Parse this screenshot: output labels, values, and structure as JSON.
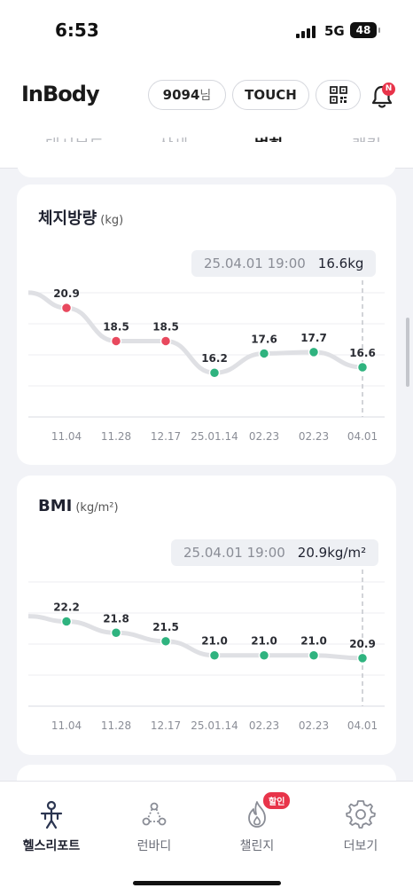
{
  "status_bar": {
    "time": "6:53",
    "network": "5G",
    "battery": "48"
  },
  "header": {
    "logo": "InBody",
    "user_id": "9094",
    "user_suffix": "님",
    "touch_label": "TOUCH",
    "icons": {
      "qr": "qr-code-icon",
      "notification": "bell-icon"
    },
    "notification_badge": "N"
  },
  "tabs": [
    {
      "label": "대시보드",
      "active": false
    },
    {
      "label": "상세",
      "active": false
    },
    {
      "label": "변화",
      "active": true
    },
    {
      "label": "랭킹",
      "active": false
    }
  ],
  "cards": [
    {
      "title": "체지방량",
      "unit": "(kg)",
      "tooltip": {
        "date": "25.04.01 19:00",
        "value": "16.6kg"
      },
      "chart_data": {
        "type": "line",
        "categories": [
          "11.04",
          "11.28",
          "12.17",
          "25.01.14",
          "02.23",
          "02.23",
          "04.01"
        ],
        "values": [
          20.9,
          18.5,
          18.5,
          16.2,
          17.6,
          17.7,
          16.6
        ],
        "point_colors": [
          "#e8495e",
          "#e8495e",
          "#e8495e",
          "#2fb37f",
          "#2fb37f",
          "#2fb37f",
          "#2fb37f"
        ],
        "selected_index": 6,
        "ylim": [
          13.0,
          22.0
        ],
        "grid": true
      }
    },
    {
      "title": "BMI",
      "unit": "(kg/m²)",
      "tooltip": {
        "date": "25.04.01 19:00",
        "value": "20.9kg/m²"
      },
      "chart_data": {
        "type": "line",
        "categories": [
          "11.04",
          "11.28",
          "12.17",
          "25.01.14",
          "02.23",
          "02.23",
          "04.01"
        ],
        "values": [
          22.2,
          21.8,
          21.5,
          21.0,
          21.0,
          21.0,
          20.9
        ],
        "point_colors": [
          "#2fb37f",
          "#2fb37f",
          "#2fb37f",
          "#2fb37f",
          "#2fb37f",
          "#2fb37f",
          "#2fb37f"
        ],
        "selected_index": 6,
        "ylim": [
          19.2,
          23.6
        ],
        "grid": true
      }
    }
  ],
  "bottom_nav": [
    {
      "label": "헬스리포트",
      "icon": "health-report-icon",
      "active": true
    },
    {
      "label": "런바디",
      "icon": "runbody-icon",
      "active": false
    },
    {
      "label": "챌린지",
      "icon": "challenge-icon",
      "active": false,
      "badge": "할인"
    },
    {
      "label": "더보기",
      "icon": "gear-icon",
      "active": false
    }
  ],
  "colors": {
    "accent_red": "#e8495e",
    "accent_green": "#2fb37f",
    "badge_red": "#e8344a"
  }
}
